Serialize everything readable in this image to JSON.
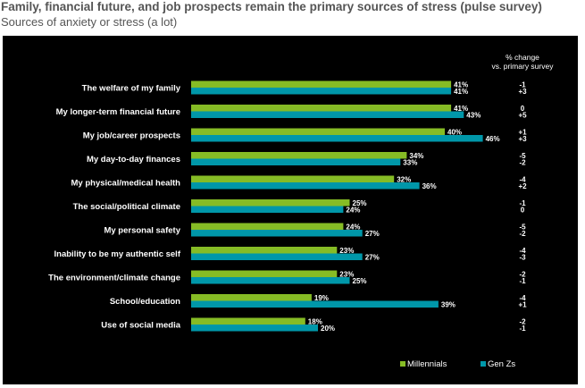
{
  "header": {
    "title": "Family, financial future, and job prospects remain the primary sources of stress (pulse survey)",
    "subtitle": "Sources of anxiety or stress (a lot)"
  },
  "chart_data": {
    "type": "bar",
    "orientation": "horizontal",
    "change_header": [
      "% change",
      "vs. primary survey"
    ],
    "categories": [
      "The welfare of my family",
      "My longer-term financial future",
      "My job/career prospects",
      "My day-to-day finances",
      "My physical/medical health",
      "The social/political climate",
      "My personal safety",
      "Inability to be my authentic self",
      "The environment/climate change",
      "School/education",
      "Use of social media"
    ],
    "series": [
      {
        "name": "Millennials",
        "color": "#86bc25",
        "values": [
          41,
          41,
          40,
          34,
          32,
          25,
          24,
          23,
          23,
          19,
          18
        ],
        "change": [
          "-1",
          "0",
          "+1",
          "-5",
          "-4",
          "-1",
          "-5",
          "-4",
          "-2",
          "-4",
          "-2"
        ]
      },
      {
        "name": "Gen Zs",
        "color": "#0097a9",
        "values": [
          41,
          43,
          46,
          33,
          36,
          24,
          27,
          27,
          25,
          39,
          20
        ],
        "change": [
          "+3",
          "+5",
          "+3",
          "-2",
          "+2",
          "0",
          "-2",
          "-3",
          "-1",
          "+1",
          "-1"
        ]
      }
    ],
    "value_suffix": "%",
    "legend_position": "bottom-right",
    "grid": false
  }
}
